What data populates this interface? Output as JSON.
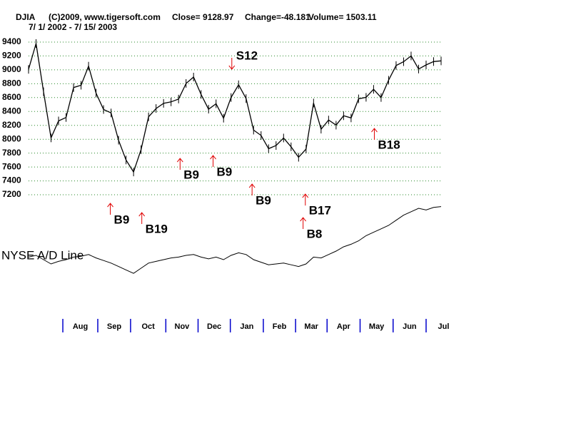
{
  "chart_data": {
    "type": "line",
    "title": "DJIA",
    "header": [
      "(C)2009, www.tigersoft.com",
      "Close=  9128.97",
      "Change=-48.181",
      "Volume= 1503.11"
    ],
    "subtitle": "7/ 1/ 2002 - 7/ 15/ 2003",
    "values": [
      9007,
      9379,
      8684,
      8019,
      8264,
      8313,
      8745,
      8778,
      9053,
      8664,
      8428,
      8379,
      7986,
      7701,
      7528,
      7850,
      8323,
      8443,
      8517,
      8538,
      8579,
      8804,
      8896,
      8645,
      8433,
      8511,
      8303,
      8601,
      8785,
      8586,
      8131,
      8054,
      7864,
      7909,
      8018,
      7891,
      7740,
      7859,
      8522,
      8145,
      8277,
      8203,
      8338,
      8307,
      8582,
      8604,
      8719,
      8601,
      8850,
      9062,
      9117,
      9200,
      9011,
      9071,
      9119,
      9129
    ],
    "color": "#000000",
    "ylim": [
      7000,
      9600
    ],
    "yticks": [
      7200,
      7400,
      7600,
      7800,
      8000,
      8200,
      8400,
      8600,
      8800,
      9000,
      9200,
      9400
    ],
    "grid": true,
    "months": [
      "Aug",
      "Sep",
      "Oct",
      "Nov",
      "Dec",
      "Jan",
      "Feb",
      "Mar",
      "Apr",
      "May",
      "Jun",
      "Jul"
    ],
    "xticks": [
      4.57,
      9.23,
      13.6,
      18.3,
      22.6,
      26.9,
      31.3,
      35.6,
      39.8,
      44.2,
      48.6,
      53.0
    ],
    "xlim": [
      0,
      55
    ],
    "signals": [
      {
        "label": "S12",
        "week": 27.1,
        "at": 9009,
        "dir": "down"
      },
      {
        "label": "B9",
        "week": 10.9,
        "at": 7077,
        "dir": "up"
      },
      {
        "label": "B19",
        "week": 15.1,
        "at": 6943,
        "dir": "up"
      },
      {
        "label": "B9",
        "week": 20.2,
        "at": 7724,
        "dir": "up"
      },
      {
        "label": "B9",
        "week": 24.6,
        "at": 7765,
        "dir": "up"
      },
      {
        "label": "B9",
        "week": 29.8,
        "at": 7354,
        "dir": "up"
      },
      {
        "label": "B17",
        "week": 36.9,
        "at": 7210,
        "dir": "up"
      },
      {
        "label": "B8",
        "week": 36.6,
        "at": 6871,
        "dir": "up"
      },
      {
        "label": "B18",
        "week": 46.1,
        "at": 8156,
        "dir": "up"
      }
    ],
    "signal_color": "#e00000",
    "ad_label": "NYSE A/D Line",
    "ad_values": [
      33,
      35,
      30,
      25,
      28,
      30,
      33,
      34,
      36,
      32,
      29,
      26,
      22,
      18,
      14,
      20,
      26,
      28,
      30,
      32,
      33,
      35,
      36,
      33,
      31,
      33,
      30,
      35,
      38,
      36,
      30,
      27,
      24,
      25,
      26,
      24,
      22,
      25,
      33,
      32,
      36,
      40,
      45,
      48,
      52,
      58,
      62,
      66,
      70,
      76,
      82,
      86,
      90,
      88,
      91,
      92
    ],
    "ad_ylim": [
      0,
      100
    ]
  }
}
